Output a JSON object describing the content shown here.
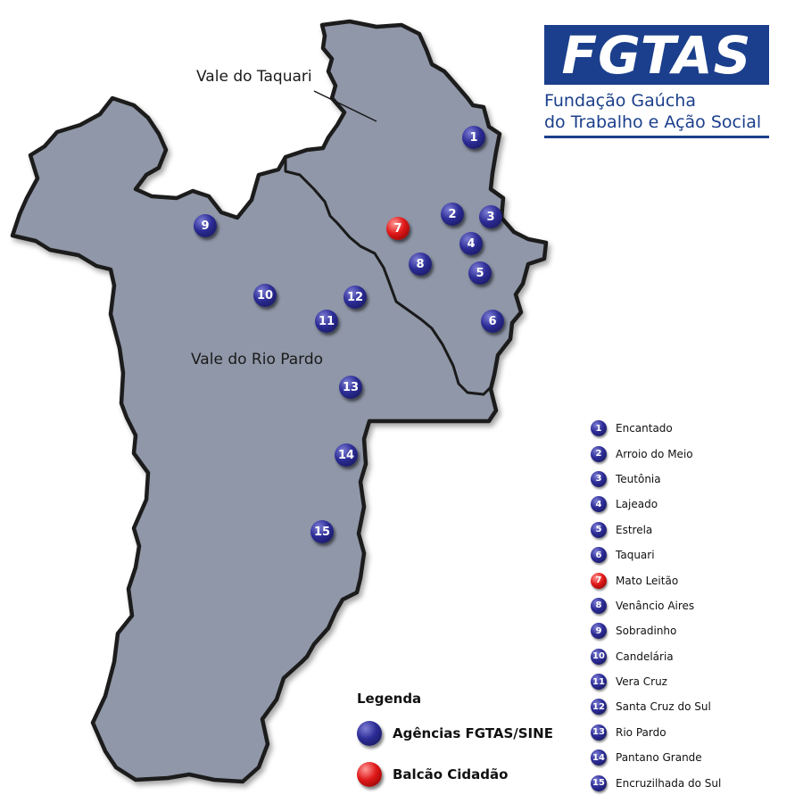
{
  "logo": {
    "wordmark": "FGTAS",
    "line1": "Fundação Gaúcha",
    "line2": "do Trabalho e Ação Social",
    "brand_color": "#1b3f8c"
  },
  "regions": {
    "taquari": "Vale do Taquari",
    "rio_pardo": "Vale do Rio Pardo",
    "map_fill": "#8f97a8"
  },
  "markers": [
    {
      "num": "1",
      "type": "agency"
    },
    {
      "num": "2",
      "type": "agency"
    },
    {
      "num": "3",
      "type": "agency"
    },
    {
      "num": "4",
      "type": "agency"
    },
    {
      "num": "5",
      "type": "agency"
    },
    {
      "num": "6",
      "type": "agency"
    },
    {
      "num": "7",
      "type": "balcao"
    },
    {
      "num": "8",
      "type": "agency"
    },
    {
      "num": "9",
      "type": "agency"
    },
    {
      "num": "10",
      "type": "agency"
    },
    {
      "num": "11",
      "type": "agency"
    },
    {
      "num": "12",
      "type": "agency"
    },
    {
      "num": "13",
      "type": "agency"
    },
    {
      "num": "14",
      "type": "agency"
    },
    {
      "num": "15",
      "type": "agency"
    }
  ],
  "cities": [
    {
      "num": "1",
      "name": "Encantado",
      "type": "agency"
    },
    {
      "num": "2",
      "name": "Arroio do Meio",
      "type": "agency"
    },
    {
      "num": "3",
      "name": "Teutônia",
      "type": "agency"
    },
    {
      "num": "4",
      "name": "Lajeado",
      "type": "agency"
    },
    {
      "num": "5",
      "name": "Estrela",
      "type": "agency"
    },
    {
      "num": "6",
      "name": "Taquari",
      "type": "agency"
    },
    {
      "num": "7",
      "name": "Mato Leitão",
      "type": "balcao"
    },
    {
      "num": "8",
      "name": "Venâncio Aires",
      "type": "agency"
    },
    {
      "num": "9",
      "name": "Sobradinho",
      "type": "agency"
    },
    {
      "num": "10",
      "name": "Candelária",
      "type": "agency"
    },
    {
      "num": "11",
      "name": "Vera Cruz",
      "type": "agency"
    },
    {
      "num": "12",
      "name": "Santa Cruz do Sul",
      "type": "agency"
    },
    {
      "num": "13",
      "name": "Rio Pardo",
      "type": "agency"
    },
    {
      "num": "14",
      "name": "Pantano Grande",
      "type": "agency"
    },
    {
      "num": "15",
      "name": "Encruzilhada do Sul",
      "type": "agency"
    }
  ],
  "legend": {
    "title": "Legenda",
    "agency_label": "Agências FGTAS/SINE",
    "balcao_label": "Balcão Cidadão",
    "agency_color": "#2c2c96",
    "balcao_color": "#e01818"
  }
}
